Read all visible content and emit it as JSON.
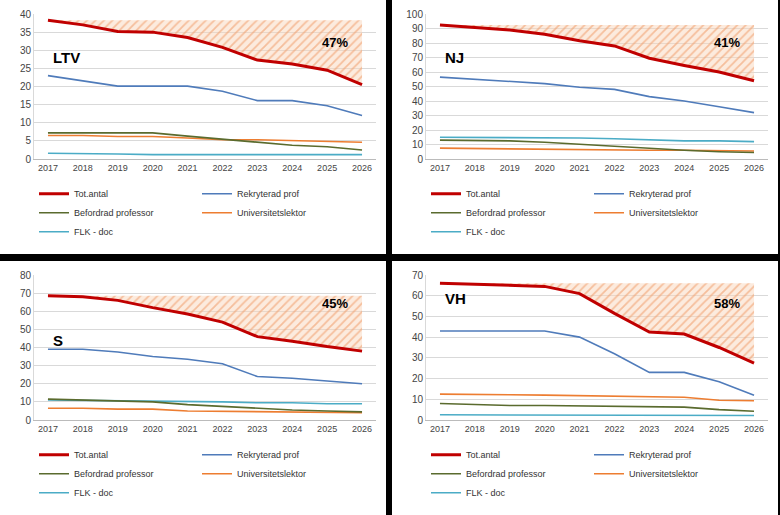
{
  "chart_data": [
    {
      "type": "line",
      "title": "LTV",
      "annotations": [
        "47%"
      ],
      "categories": [
        "2017",
        "2018",
        "2019",
        "2020",
        "2021",
        "2022",
        "2023",
        "2024",
        "2025",
        "2026"
      ],
      "ylim": [
        0,
        40
      ],
      "yticks": [
        0,
        5,
        10,
        15,
        20,
        25,
        30,
        35,
        40
      ],
      "grid": true,
      "legend": "bottom",
      "series": [
        {
          "name": "Tot.antal",
          "color": "#C00000",
          "values": [
            38.3,
            37,
            35.2,
            35,
            33.5,
            30.8,
            27.3,
            26.2,
            24.5,
            20.5
          ]
        },
        {
          "name": "Rekryterad prof",
          "color": "#4F7BBA",
          "values": [
            23,
            21.5,
            20.1,
            20.1,
            20.1,
            18.7,
            16.1,
            16.1,
            14.7,
            12
          ]
        },
        {
          "name": "Befordrad professor",
          "color": "#5A6B2E",
          "values": [
            7.2,
            7.2,
            7.2,
            7.2,
            6.3,
            5.5,
            4.7,
            3.8,
            3.4,
            2.5
          ]
        },
        {
          "name": "Universitetslektor",
          "color": "#ED7D31",
          "values": [
            6.5,
            6.5,
            6.2,
            6.2,
            5.8,
            5.3,
            5.3,
            5.1,
            5.0,
            4.6
          ]
        },
        {
          "name": "FLK - doc",
          "color": "#4BACC6",
          "values": [
            1.6,
            1.6,
            1.4,
            1.2,
            1.2,
            1.2,
            1.2,
            1.2,
            1.2,
            1.2
          ]
        }
      ]
    },
    {
      "type": "line",
      "title": "NJ",
      "annotations": [
        "41%"
      ],
      "categories": [
        "2017",
        "2018",
        "2019",
        "2020",
        "2021",
        "2022",
        "2023",
        "2024",
        "2025",
        "2026"
      ],
      "ylim": [
        0,
        100
      ],
      "yticks": [
        0,
        10,
        20,
        30,
        40,
        50,
        60,
        70,
        80,
        90,
        100
      ],
      "grid": true,
      "legend": "bottom",
      "series": [
        {
          "name": "Tot.antal",
          "color": "#C00000",
          "values": [
            92.5,
            91,
            89,
            86,
            81.5,
            78,
            69.5,
            64.5,
            60,
            54
          ]
        },
        {
          "name": "Rekryterad prof",
          "color": "#4F7BBA",
          "values": [
            56.5,
            55,
            53.5,
            52,
            49.5,
            48,
            43,
            40,
            36,
            32
          ]
        },
        {
          "name": "Befordrad professor",
          "color": "#5A6B2E",
          "values": [
            13,
            13,
            12.5,
            11.5,
            10,
            9,
            7.5,
            6,
            5,
            4.5
          ]
        },
        {
          "name": "Universitetslektor",
          "color": "#ED7D31",
          "values": [
            7.5,
            7.2,
            7,
            6.8,
            6.5,
            6.2,
            6,
            6,
            5.8,
            5.5
          ]
        },
        {
          "name": "FLK - doc",
          "color": "#4BACC6",
          "values": [
            15,
            15,
            15,
            14.8,
            14.5,
            14,
            13,
            12.5,
            12.5,
            12
          ]
        }
      ]
    },
    {
      "type": "line",
      "title": "S",
      "annotations": [
        "45%"
      ],
      "categories": [
        "2017",
        "2018",
        "2019",
        "2020",
        "2021",
        "2022",
        "2023",
        "2024",
        "2025",
        "2026"
      ],
      "ylim": [
        0,
        80
      ],
      "yticks": [
        0,
        10,
        20,
        30,
        40,
        50,
        60,
        70,
        80
      ],
      "grid": true,
      "legend": "bottom",
      "series": [
        {
          "name": "Tot.antal",
          "color": "#C00000",
          "values": [
            68.5,
            68,
            66,
            62,
            58.5,
            54,
            46,
            43.5,
            40.5,
            38
          ]
        },
        {
          "name": "Rekryterad prof",
          "color": "#4F7BBA",
          "values": [
            39,
            39,
            37.5,
            35,
            33.5,
            31,
            24,
            23,
            21.5,
            20
          ]
        },
        {
          "name": "Befordrad professor",
          "color": "#5A6B2E",
          "values": [
            11.5,
            11,
            10.5,
            10,
            8.5,
            7.5,
            6.5,
            5.5,
            5,
            4.5
          ]
        },
        {
          "name": "Universitetslektor",
          "color": "#ED7D31",
          "values": [
            6.5,
            6.5,
            6,
            6,
            5,
            4.8,
            4.8,
            4.5,
            4.3,
            4
          ]
        },
        {
          "name": "FLK - doc",
          "color": "#4BACC6",
          "values": [
            11,
            10.8,
            10.8,
            10.6,
            10.4,
            10,
            9.5,
            9.5,
            9,
            9
          ]
        }
      ]
    },
    {
      "type": "line",
      "title": "VH",
      "annotations": [
        "58%"
      ],
      "categories": [
        "2017",
        "2018",
        "2019",
        "2020",
        "2021",
        "2022",
        "2023",
        "2024",
        "2025",
        "2026"
      ],
      "ylim": [
        0,
        70
      ],
      "yticks": [
        0,
        10,
        20,
        30,
        40,
        50,
        60,
        70
      ],
      "grid": true,
      "legend": "bottom",
      "series": [
        {
          "name": "Tot.antal",
          "color": "#C00000",
          "values": [
            66,
            65.5,
            65,
            64.5,
            61,
            51.5,
            42.5,
            41.5,
            35,
            27.5
          ]
        },
        {
          "name": "Rekryterad prof",
          "color": "#4F7BBA",
          "values": [
            43,
            43,
            43,
            43,
            40,
            32,
            23,
            23,
            18.5,
            12
          ]
        },
        {
          "name": "Befordrad professor",
          "color": "#5A6B2E",
          "values": [
            8,
            7.5,
            7,
            7,
            6.8,
            6.5,
            6.5,
            6.2,
            5,
            4.2
          ]
        },
        {
          "name": "Universitetslektor",
          "color": "#ED7D31",
          "values": [
            12.5,
            12.5,
            12.2,
            12,
            11.8,
            11.6,
            11.5,
            11,
            9.5,
            9.3
          ]
        },
        {
          "name": "FLK - doc",
          "color": "#4BACC6",
          "values": [
            2.5,
            2.5,
            2.3,
            2.3,
            2.2,
            2.2,
            2.2,
            2.2,
            2.2,
            2.2
          ]
        }
      ]
    }
  ]
}
